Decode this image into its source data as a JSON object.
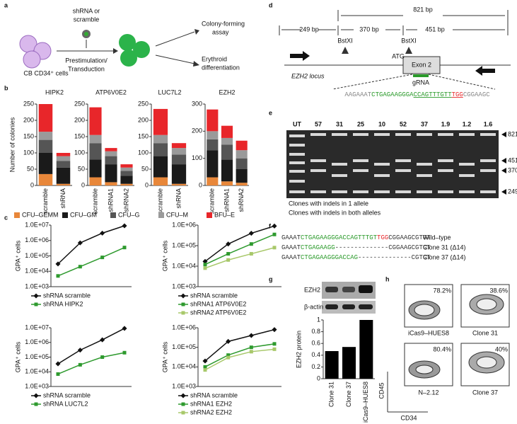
{
  "panel_labels": [
    "a",
    "b",
    "c",
    "d",
    "e",
    "f",
    "g",
    "h"
  ],
  "schematic": {
    "cells": "CB CD34⁺ cells",
    "vector": [
      "shRNA or",
      "scramble"
    ],
    "step": [
      "Prestimulation/",
      "Transduction"
    ],
    "outcomes": [
      "Colony-forming",
      "assay",
      "Erythroid",
      "differentiation"
    ]
  },
  "locus": {
    "total": "821 bp",
    "fragments": [
      "249 bp",
      "370 bp",
      "451 bp"
    ],
    "sites": [
      "BstXI",
      "BstXI"
    ],
    "start": "ATG",
    "exon": "Exon 2",
    "name": "EZH2 locus",
    "guide": "gRNA",
    "sequence": [
      "AAGAAAT",
      "CTGAGAAGGGA",
      "CCAGTTTGTT",
      "TGG",
      "CGGAAGC"
    ],
    "sequence_colors": [
      "#888888",
      "#2a9a2a",
      "#2a9a2a",
      "#e8262a",
      "#888888"
    ]
  },
  "gel": {
    "lanes": [
      "UT",
      "57",
      "31",
      "25",
      "10",
      "52",
      "37",
      "1.9",
      "1.2",
      "1.6"
    ],
    "lane_colors": [
      "#000000",
      "#2a9a2a",
      "#3355cc",
      "#2a9a2a",
      "#000000",
      "#2a9a2a",
      "#3355cc",
      "#2a9a2a",
      "#3355cc",
      "#3355cc"
    ],
    "sizes": [
      "821 bp",
      "451 bp",
      "370 bp",
      "249 bp"
    ],
    "key": [
      "Clones with indels in 1 allele",
      "Clones with indels in both alleles"
    ],
    "key_colors": [
      "#3355cc",
      "#2a9a2a"
    ]
  },
  "alignment": {
    "rows": [
      {
        "segments": [
          "GAAAT",
          "CTGAGAAGGGACCAGTTTGT",
          "TGG",
          "CGGAAGCGTGT"
        ],
        "colors": [
          "#333333",
          "#2a9a2a",
          "#e8262a",
          "#333333"
        ],
        "label": "Wild–type"
      },
      {
        "segments": [
          "GAAAT",
          "CTGAGAAGG",
          "--------------",
          "CGGAAGCGTGT"
        ],
        "colors": [
          "#333333",
          "#2a9a2a",
          "#333333",
          "#333333"
        ],
        "label": "Clone 31 (Δ14)"
      },
      {
        "segments": [
          "GAAAT",
          "CTGAGAAGGGACCAG",
          "--------------",
          "CGTGT"
        ],
        "colors": [
          "#333333",
          "#2a9a2a",
          "#333333",
          "#333333"
        ],
        "label": "Clone 37 (Δ14)"
      }
    ]
  },
  "blot": {
    "bands": [
      "EZH2",
      "β-actin"
    ]
  },
  "flow": {
    "plots": [
      {
        "percent": "78.2%",
        "label": "iCas9–HUES8"
      },
      {
        "percent": "38.6%",
        "label": "Clone 31"
      },
      {
        "percent": "80.4%",
        "label": "N–2.12"
      },
      {
        "percent": "40%",
        "label": "Clone 37"
      }
    ],
    "y_axis": "CD45",
    "x_axis": "CD34"
  },
  "chart_data": [
    {
      "type": "bar",
      "stacked": true,
      "title": "HIPK2",
      "ylabel": "Number of colonies",
      "categories": [
        "scramble",
        "shRNA"
      ],
      "ylim": [
        0,
        250
      ],
      "yticks": [
        0,
        50,
        100,
        150,
        200,
        250
      ],
      "series": [
        {
          "name": "CFU–GEMM",
          "color": "#e8873a",
          "values": [
            35,
            5
          ]
        },
        {
          "name": "CFU–GM",
          "color": "#1a1a1a",
          "values": [
            65,
            50
          ]
        },
        {
          "name": "CFU–G",
          "color": "#555555",
          "values": [
            40,
            20
          ]
        },
        {
          "name": "CFU–M",
          "color": "#9a9a9a",
          "values": [
            25,
            15
          ]
        },
        {
          "name": "BFU–E",
          "color": "#e8262a",
          "values": [
            85,
            10
          ]
        }
      ]
    },
    {
      "type": "bar",
      "stacked": true,
      "title": "ATP6V0E2",
      "categories": [
        "scramble",
        "shRNA1",
        "shRNA2"
      ],
      "ylim": [
        0,
        250
      ],
      "yticks": [
        0,
        50,
        100,
        150,
        200,
        250
      ],
      "series": [
        {
          "name": "CFU–GEMM",
          "color": "#e8873a",
          "values": [
            25,
            10,
            5
          ]
        },
        {
          "name": "CFU–GM",
          "color": "#1a1a1a",
          "values": [
            55,
            55,
            25
          ]
        },
        {
          "name": "CFU–G",
          "color": "#555555",
          "values": [
            50,
            25,
            15
          ]
        },
        {
          "name": "CFU–M",
          "color": "#9a9a9a",
          "values": [
            25,
            15,
            10
          ]
        },
        {
          "name": "BFU–E",
          "color": "#e8262a",
          "values": [
            85,
            10,
            10
          ]
        }
      ]
    },
    {
      "type": "bar",
      "stacked": true,
      "title": "LUC7L2",
      "categories": [
        "scramble",
        "shRNA"
      ],
      "ylim": [
        0,
        250
      ],
      "yticks": [
        0,
        50,
        100,
        150,
        200,
        250
      ],
      "series": [
        {
          "name": "CFU–GEMM",
          "color": "#e8873a",
          "values": [
            25,
            5
          ]
        },
        {
          "name": "CFU–GM",
          "color": "#1a1a1a",
          "values": [
            65,
            60
          ]
        },
        {
          "name": "CFU–G",
          "color": "#555555",
          "values": [
            40,
            30
          ]
        },
        {
          "name": "CFU–M",
          "color": "#9a9a9a",
          "values": [
            25,
            20
          ]
        },
        {
          "name": "BFU–E",
          "color": "#e8262a",
          "values": [
            80,
            15
          ]
        }
      ]
    },
    {
      "type": "bar",
      "stacked": true,
      "title": "EZH2",
      "categories": [
        "scramble",
        "shRNA1",
        "shRNA2"
      ],
      "ylim": [
        0,
        300
      ],
      "yticks": [
        0,
        100,
        200,
        300
      ],
      "series": [
        {
          "name": "CFU–GEMM",
          "color": "#e8873a",
          "values": [
            30,
            15,
            10
          ]
        },
        {
          "name": "CFU–GM",
          "color": "#1a1a1a",
          "values": [
            100,
            80,
            50
          ]
        },
        {
          "name": "CFU–G",
          "color": "#555555",
          "values": [
            40,
            55,
            40
          ]
        },
        {
          "name": "CFU–M",
          "color": "#9a9a9a",
          "values": [
            30,
            25,
            30
          ]
        },
        {
          "name": "BFU–E",
          "color": "#e8262a",
          "values": [
            80,
            45,
            35
          ]
        }
      ]
    },
    {
      "type": "line",
      "log": true,
      "legend": "below",
      "ylabel": "GPA⁺ cells",
      "categories": [
        null,
        null,
        null,
        null
      ],
      "ylim": [
        1000,
        10000000
      ],
      "yticks": [
        {
          "value": 1000,
          "label": "1.0E+03"
        },
        {
          "value": 10000,
          "label": "1.0E+04"
        },
        {
          "value": 100000,
          "label": "1.0E+05"
        },
        {
          "value": 1000000,
          "label": "1.0E+06"
        },
        {
          "value": 10000000,
          "label": "1.0E+07"
        }
      ],
      "series": [
        {
          "name": "shRNA scramble",
          "color": "#111111",
          "marker": "diamond",
          "values": [
            30000,
            700000,
            3000000,
            9000000
          ]
        },
        {
          "name": "shRNA HIPK2",
          "color": "#2e9a2e",
          "marker": "square",
          "values": [
            5000,
            20000,
            80000,
            350000
          ]
        }
      ]
    },
    {
      "type": "line",
      "log": true,
      "legend": "below",
      "ylabel": "GPA⁺ cells",
      "categories": [
        null,
        null,
        null,
        null
      ],
      "ylim": [
        1000,
        1000000
      ],
      "yticks": [
        {
          "value": 1000,
          "label": "1.0E+03"
        },
        {
          "value": 10000,
          "label": "1.0E+04"
        },
        {
          "value": 100000,
          "label": "1.0E+05"
        },
        {
          "value": 1000000,
          "label": "1.0E+06"
        }
      ],
      "series": [
        {
          "name": "shRNA scramble",
          "color": "#111111",
          "marker": "diamond",
          "values": [
            17000,
            120000,
            400000,
            900000
          ]
        },
        {
          "name": "shRNA1 ATP6V0E2",
          "color": "#2e9a2e",
          "marker": "square",
          "values": [
            12000,
            40000,
            120000,
            350000
          ]
        },
        {
          "name": "shRNA2 ATP6V0E2",
          "color": "#a8c86a",
          "marker": "square",
          "values": [
            8000,
            20000,
            40000,
            80000
          ]
        }
      ]
    },
    {
      "type": "line",
      "log": true,
      "legend": "below",
      "ylabel": "GPA⁺ cells",
      "categories": [
        null,
        null,
        null,
        null
      ],
      "ylim": [
        1000,
        10000000
      ],
      "yticks": [
        {
          "value": 1000,
          "label": "1.0E+03"
        },
        {
          "value": 10000,
          "label": "1.0E+04"
        },
        {
          "value": 100000,
          "label": "1.0E+05"
        },
        {
          "value": 1000000,
          "label": "1.0E+06"
        },
        {
          "value": 10000000,
          "label": "1.0E+07"
        }
      ],
      "series": [
        {
          "name": "shRNA scramble",
          "color": "#111111",
          "marker": "diamond",
          "values": [
            35000,
            300000,
            1500000,
            9000000
          ]
        },
        {
          "name": "shRNA LUC7L2",
          "color": "#2e9a2e",
          "marker": "square",
          "values": [
            7000,
            30000,
            100000,
            200000
          ]
        }
      ]
    },
    {
      "type": "line",
      "log": true,
      "legend": "below",
      "ylabel": "GPA⁺ cells",
      "categories": [
        null,
        null,
        null,
        null
      ],
      "ylim": [
        1000,
        1000000
      ],
      "yticks": [
        {
          "value": 1000,
          "label": "1.0E+03"
        },
        {
          "value": 10000,
          "label": "1.0E+04"
        },
        {
          "value": 100000,
          "label": "1.0E+05"
        },
        {
          "value": 1000000,
          "label": "1.0E+06"
        }
      ],
      "series": [
        {
          "name": "shRNA scramble",
          "color": "#111111",
          "marker": "diamond",
          "values": [
            20000,
            200000,
            400000,
            800000
          ]
        },
        {
          "name": "shRNA1 EZH2",
          "color": "#2e9a2e",
          "marker": "square",
          "values": [
            10000,
            40000,
            100000,
            150000
          ]
        },
        {
          "name": "shRNA2 EZH2",
          "color": "#a8c86a",
          "marker": "square",
          "values": [
            7000,
            30000,
            60000,
            80000
          ]
        }
      ]
    },
    {
      "type": "bar",
      "ylabel": "EZH2 protein",
      "categories": [
        "Clone 31",
        "Clone 37",
        "iCas9–HUES8"
      ],
      "values": [
        0.47,
        0.54,
        1
      ],
      "color": "#000000",
      "ylim": [
        0,
        1
      ],
      "yticks": [
        0,
        0.2,
        0.4,
        0.6,
        0.8,
        1
      ]
    }
  ]
}
